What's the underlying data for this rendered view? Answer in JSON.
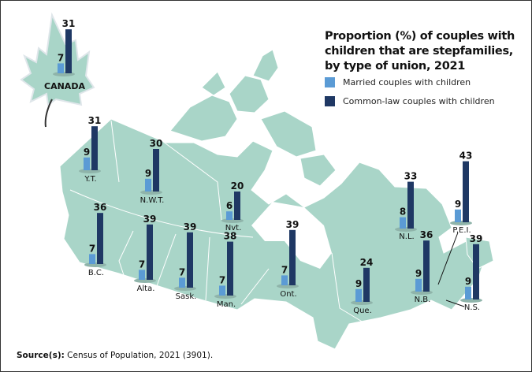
{
  "title": "Proportion (%) of couples with children that are stepfamilies, by type of union, 2021",
  "legend": [
    {
      "label": "Married couples with children",
      "color": "#5b9bd5"
    },
    {
      "label": "Common-law couples with children",
      "color": "#1f3864"
    }
  ],
  "source": {
    "label": "Source(s):",
    "text": "Census of Population, 2021 (3901)."
  },
  "colors": {
    "map": "#a9d5c8",
    "map_border": "#ffffff"
  },
  "chart_data": {
    "type": "bar",
    "series_names": [
      "Married couples with children",
      "Common-law couples with children"
    ],
    "regions": [
      {
        "label": "CANADA",
        "married": 7,
        "common_law": 31
      },
      {
        "label": "Y.T.",
        "married": 9,
        "common_law": 31
      },
      {
        "label": "N.W.T.",
        "married": 9,
        "common_law": 30
      },
      {
        "label": "Nvt.",
        "married": 6,
        "common_law": 20
      },
      {
        "label": "B.C.",
        "married": 7,
        "common_law": 36
      },
      {
        "label": "Alta.",
        "married": 7,
        "common_law": 39
      },
      {
        "label": "Sask.",
        "married": 7,
        "common_law": 39
      },
      {
        "label": "Man.",
        "married": 7,
        "common_law": 38
      },
      {
        "label": "Ont.",
        "married": 7,
        "common_law": 39
      },
      {
        "label": "Que.",
        "married": 9,
        "common_law": 24
      },
      {
        "label": "N.L.",
        "married": 8,
        "common_law": 33
      },
      {
        "label": "P.E.I.",
        "married": 9,
        "common_law": 43
      },
      {
        "label": "N.B.",
        "married": 9,
        "common_law": 36
      },
      {
        "label": "N.S.",
        "married": 9,
        "common_law": 39
      }
    ]
  }
}
